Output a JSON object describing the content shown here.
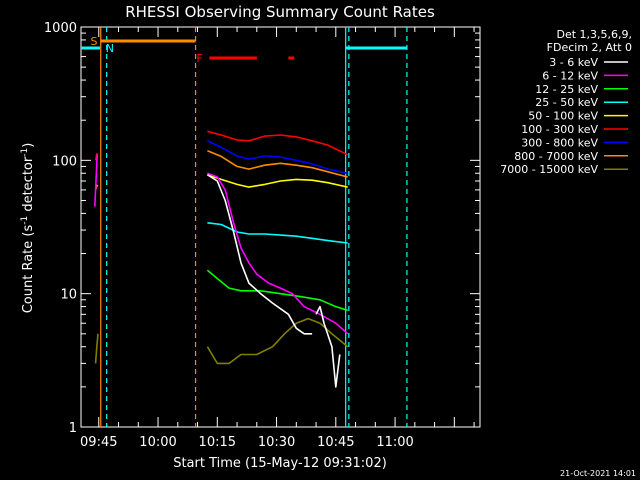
{
  "chart_data": {
    "type": "line",
    "title": "RHESSI Observing Summary Count Rates",
    "xlabel": "Start Time (15-May-12 09:31:02)",
    "ylabel_prefix": "Count Rate (s",
    "ylabel_exp1": "-1",
    "ylabel_mid": " detector",
    "ylabel_exp2": "-1",
    "ylabel_suffix": ")",
    "yscale": "log",
    "ylim": [
      1,
      1000
    ],
    "xlim_minutes": [
      9.5,
      110.5
    ],
    "xtick_labels": [
      {
        "m": 14,
        "label": "09:45"
      },
      {
        "m": 29,
        "label": "10:00"
      },
      {
        "m": 44,
        "label": "10:15"
      },
      {
        "m": 59,
        "label": "10:30"
      },
      {
        "m": 74,
        "label": "10:45"
      },
      {
        "m": 89,
        "label": "11:00"
      }
    ],
    "ytick_labels": [
      {
        "v": 1,
        "label": "1"
      },
      {
        "v": 10,
        "label": "10"
      },
      {
        "v": 100,
        "label": "100"
      },
      {
        "v": 1000,
        "label": "1000"
      }
    ],
    "legend_header": [
      "Det 1,3,5,6,9,",
      "FDecim 2, Att 0"
    ],
    "legend_position": "right",
    "series": [
      {
        "name": "3 - 6 keV",
        "color": "#ffffff",
        "segments": [
          [
            [
              41.5,
              78
            ],
            [
              44,
              70
            ],
            [
              46,
              50
            ],
            [
              48,
              30
            ],
            [
              50,
              17
            ],
            [
              52,
              12
            ],
            [
              55,
              10
            ],
            [
              58,
              8.5
            ],
            [
              62,
              7
            ],
            [
              64,
              5.5
            ],
            [
              66,
              5
            ],
            [
              68,
              5
            ]
          ],
          [
            [
              69,
              7
            ],
            [
              70,
              8
            ],
            [
              71,
              6
            ],
            [
              73,
              4
            ],
            [
              74,
              2
            ],
            [
              75,
              3.5
            ]
          ]
        ]
      },
      {
        "name": "6 - 12 keV",
        "color": "#ff00ff",
        "segments": [
          [
            [
              13,
              45
            ],
            [
              13.3,
              70
            ],
            [
              13.6,
              110
            ]
          ],
          [
            [
              41.5,
              80
            ],
            [
              44,
              75
            ],
            [
              46,
              60
            ],
            [
              48,
              35
            ],
            [
              50,
              22
            ],
            [
              52,
              17
            ],
            [
              54,
              14
            ],
            [
              57,
              12
            ],
            [
              60,
              11
            ],
            [
              63,
              10
            ],
            [
              66,
              8
            ],
            [
              70,
              7
            ],
            [
              74,
              6
            ],
            [
              77,
              5
            ]
          ]
        ]
      },
      {
        "name": "12 - 25 keV",
        "color": "#00ff00",
        "segments": [
          [
            [
              41.5,
              15
            ],
            [
              44,
              13
            ],
            [
              47,
              11
            ],
            [
              50,
              10.5
            ],
            [
              55,
              10.5
            ],
            [
              60,
              10
            ],
            [
              65,
              9.5
            ],
            [
              70,
              9
            ],
            [
              74,
              8
            ],
            [
              77,
              7.5
            ]
          ]
        ]
      },
      {
        "name": "25 - 50 keV",
        "color": "#00ffff",
        "segments": [
          [
            [
              41.5,
              34
            ],
            [
              45,
              33
            ],
            [
              49,
              29
            ],
            [
              52,
              28
            ],
            [
              56,
              28
            ],
            [
              60,
              27.5
            ],
            [
              64,
              27
            ],
            [
              68,
              26
            ],
            [
              72,
              25
            ],
            [
              77,
              24
            ]
          ]
        ]
      },
      {
        "name": "50 - 100 keV",
        "color": "#ffff00",
        "segments": [
          [
            [
              41.5,
              78
            ],
            [
              45,
              72
            ],
            [
              49,
              66
            ],
            [
              52,
              63
            ],
            [
              56,
              66
            ],
            [
              60,
              70
            ],
            [
              64,
              72
            ],
            [
              68,
              71
            ],
            [
              72,
              68
            ],
            [
              77,
              63
            ]
          ]
        ]
      },
      {
        "name": "100 - 300 keV",
        "color": "#ff0000",
        "segments": [
          [
            [
              13.2,
              100
            ],
            [
              13.5,
              112
            ],
            [
              13.8,
              110
            ]
          ],
          [
            [
              41.5,
              165
            ],
            [
              45,
              155
            ],
            [
              49,
              142
            ],
            [
              52,
              140
            ],
            [
              56,
              152
            ],
            [
              60,
              155
            ],
            [
              64,
              150
            ],
            [
              68,
              140
            ],
            [
              72,
              130
            ],
            [
              77,
              110
            ]
          ]
        ]
      },
      {
        "name": "300 - 800 keV",
        "color": "#0000ff",
        "segments": [
          [
            [
              13.2,
              70
            ],
            [
              13.5,
              76
            ],
            [
              13.8,
              75
            ]
          ],
          [
            [
              41.5,
              140
            ],
            [
              45,
              125
            ],
            [
              49,
              108
            ],
            [
              52,
              102
            ],
            [
              56,
              108
            ],
            [
              60,
              106
            ],
            [
              64,
              100
            ],
            [
              68,
              94
            ],
            [
              72,
              86
            ],
            [
              77,
              80
            ]
          ]
        ]
      },
      {
        "name": "800 - 7000 keV",
        "color": "#ff8c00",
        "segments": [
          [
            [
              13.2,
              60
            ],
            [
              13.5,
              65
            ],
            [
              13.8,
              64
            ]
          ],
          [
            [
              41.5,
              118
            ],
            [
              45,
              107
            ],
            [
              49,
              90
            ],
            [
              52,
              86
            ],
            [
              56,
              92
            ],
            [
              60,
              95
            ],
            [
              64,
              92
            ],
            [
              68,
              88
            ],
            [
              72,
              82
            ],
            [
              77,
              75
            ]
          ]
        ]
      },
      {
        "name": "7000 - 15000 keV",
        "color": "#808000",
        "segments": [
          [
            [
              13.2,
              3
            ],
            [
              13.5,
              4
            ],
            [
              13.8,
              5
            ]
          ],
          [
            [
              41.5,
              4
            ],
            [
              44,
              3
            ],
            [
              47,
              3
            ],
            [
              50,
              3.5
            ],
            [
              54,
              3.5
            ],
            [
              58,
              4
            ],
            [
              61,
              5
            ],
            [
              64,
              6
            ],
            [
              67,
              6.5
            ],
            [
              70,
              6
            ],
            [
              73,
              5
            ],
            [
              77,
              4
            ]
          ]
        ]
      }
    ],
    "annotations": [
      {
        "text": "S",
        "m": 12.8,
        "color": "#ff8c00"
      },
      {
        "text": "N",
        "m": 16.8,
        "color": "#00ffff"
      },
      {
        "text": "F",
        "m": 39.5,
        "color": "#ff0000"
      }
    ],
    "bars": [
      {
        "name": "saa-bar",
        "color": "#ff8c00",
        "from": 14.5,
        "to": 38.5
      },
      {
        "name": "night-bar-1",
        "color": "#00ffff",
        "from": 9.5,
        "to": 14.3
      },
      {
        "name": "night-bar-2",
        "color": "#00ffff",
        "from": 76.5,
        "to": 92
      },
      {
        "name": "flare-bar-1",
        "color": "#ff0000",
        "from": 42,
        "to": 54
      },
      {
        "name": "flare-bar-2",
        "color": "#ff0000",
        "from": 62,
        "to": 63.5
      }
    ],
    "vlines": [
      {
        "name": "saa-start-line",
        "m": 14.5,
        "color": "#ff8c00",
        "style": "solid"
      },
      {
        "name": "night-end-line",
        "m": 16,
        "color": "#00ffff",
        "style": "dashed"
      },
      {
        "name": "saa-end-line",
        "m": 38.5,
        "color": "#ff8c00",
        "style": "dashed"
      },
      {
        "name": "night-start-line",
        "m": 76.5,
        "color": "#00ffff",
        "style": "solid"
      },
      {
        "name": "night-start-line-2",
        "m": 77.3,
        "color": "#00ffff",
        "style": "dashed"
      },
      {
        "name": "night-end-line-2",
        "m": 92,
        "color": "#00ffff",
        "style": "dashed"
      }
    ]
  },
  "footer": {
    "timestamp": "21-Oct-2021 14:01"
  }
}
